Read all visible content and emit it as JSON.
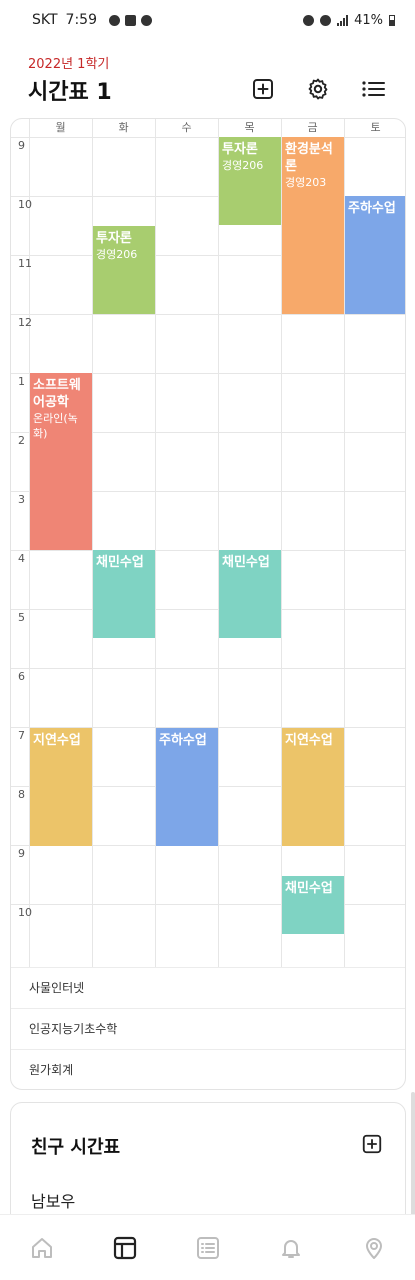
{
  "status_bar": {
    "carrier": "SKT",
    "time": "7:59",
    "battery": "41%"
  },
  "header": {
    "semester": "2022년 1학기",
    "title": "시간표 1"
  },
  "timetable": {
    "days": [
      "월",
      "화",
      "수",
      "목",
      "금",
      "토"
    ],
    "hours": [
      "9",
      "10",
      "11",
      "12",
      "1",
      "2",
      "3",
      "4",
      "5",
      "6",
      "7",
      "8",
      "9",
      "10"
    ],
    "courses": [
      {
        "name": "투자론",
        "room": "경영206"
      },
      {
        "name": "투자론",
        "room": "경영206"
      },
      {
        "name": "환경분석론",
        "room": "경영203"
      },
      {
        "name": "주하수업",
        "room": ""
      },
      {
        "name": "소프트웨어공학",
        "room": "온라인(녹화)"
      },
      {
        "name": "채민수업",
        "room": ""
      },
      {
        "name": "채민수업",
        "room": ""
      },
      {
        "name": "지연수업",
        "room": ""
      },
      {
        "name": "주하수업",
        "room": ""
      },
      {
        "name": "지연수업",
        "room": ""
      },
      {
        "name": "채민수업",
        "room": ""
      }
    ],
    "unscheduled": [
      "사물인터넷",
      "인공지능기초수학",
      "원가회계"
    ]
  },
  "friends": {
    "title": "친구 시간표",
    "items": [
      "남보우"
    ]
  },
  "colors": {
    "green": "#a8cd6f",
    "orange": "#f7a96a",
    "blue": "#7da6e8",
    "salmon": "#ef8575",
    "teal": "#7fd3c3",
    "yellow": "#ecc469",
    "semester_red": "#c62828"
  },
  "icons": {
    "add": "add-box-icon",
    "settings": "gear-icon",
    "list": "list-icon",
    "nav": [
      "home-icon",
      "timetable-icon",
      "list-icon",
      "bell-icon",
      "location-icon"
    ]
  }
}
